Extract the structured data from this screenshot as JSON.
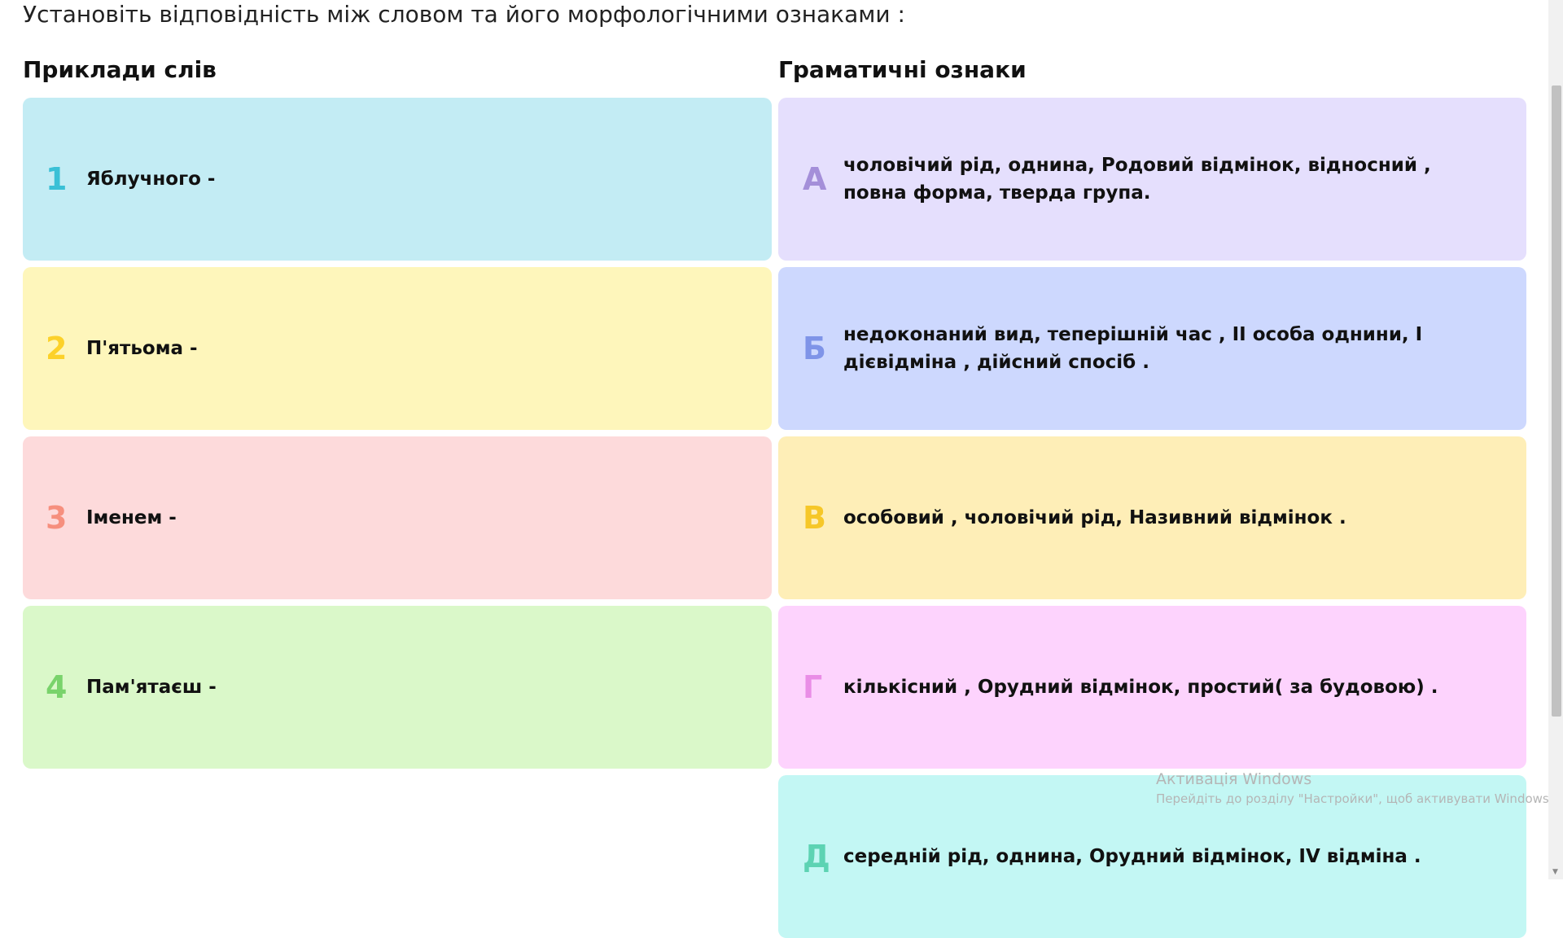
{
  "title": "Установіть відповідність між словом та його морфологічними ознаками :",
  "left_heading": "Приклади слів",
  "right_heading": "Граматичні ознаки",
  "left_items": [
    {
      "label": "1",
      "text": "Яблучного -",
      "bg": "#c3ecf4",
      "accent": "#3ac0d6"
    },
    {
      "label": "2",
      "text": "П'ятьома -",
      "bg": "#fef6bb",
      "accent": "#fcd12a"
    },
    {
      "label": "3",
      "text": "Іменем -",
      "bg": "#fddadb",
      "accent": "#f68f7e"
    },
    {
      "label": "4",
      "text": "Пам'ятаєш -",
      "bg": "#daf8c9",
      "accent": "#79d36b"
    }
  ],
  "right_items": [
    {
      "label": "А",
      "text": "чоловічий рід, однина, Родовий відмінок, відносний , повна форма, тверда група.",
      "bg": "#e5dffd",
      "accent": "#a48fd9"
    },
    {
      "label": "Б",
      "text": "недоконаний вид, теперішній час , ІІ особа однини, І дієвідміна , дійсний спосіб .",
      "bg": "#cdd8fe",
      "accent": "#7f94e8"
    },
    {
      "label": "В",
      "text": "особовий , чоловічий рід, Називний відмінок .",
      "bg": "#feeeb7",
      "accent": "#f6c728"
    },
    {
      "label": "Г",
      "text": "кількісний , Орудний відмінок, простий( за будовою) .",
      "bg": "#fdd3fd",
      "accent": "#e98de6"
    },
    {
      "label": "Д",
      "text": "середній рід, однина, Орудний відмінок, IV відміна .",
      "bg": "#c3f7f4",
      "accent": "#5dd3b3"
    }
  ],
  "watermark": {
    "line1": "Активація Windows",
    "line2": "Перейдіть до розділу \"Настройки\", щоб активувати Windows."
  }
}
